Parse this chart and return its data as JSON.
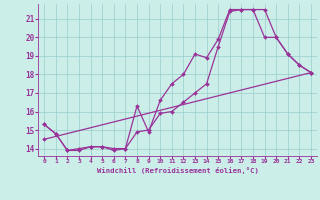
{
  "xlabel": "Windchill (Refroidissement éolien,°C)",
  "bg_color": "#cceee8",
  "grid_color": "#99cccc",
  "line_color": "#993399",
  "xlim": [
    -0.5,
    23.5
  ],
  "ylim": [
    13.6,
    21.8
  ],
  "xticks": [
    0,
    1,
    2,
    3,
    4,
    5,
    6,
    7,
    8,
    9,
    10,
    11,
    12,
    13,
    14,
    15,
    16,
    17,
    18,
    19,
    20,
    21,
    22,
    23
  ],
  "yticks": [
    14,
    15,
    16,
    17,
    18,
    19,
    20,
    21
  ],
  "line1_x": [
    0,
    1,
    2,
    3,
    4,
    5,
    6,
    7,
    8,
    9,
    10,
    11,
    12,
    13,
    14,
    15,
    16,
    17,
    18,
    19,
    20,
    21,
    22,
    23
  ],
  "line1_y": [
    15.3,
    14.8,
    13.9,
    13.9,
    14.1,
    14.1,
    13.9,
    14.0,
    16.3,
    14.9,
    16.6,
    17.5,
    18.0,
    19.1,
    18.9,
    19.9,
    21.5,
    21.5,
    21.5,
    20.0,
    20.0,
    19.1,
    18.5,
    18.1
  ],
  "line2_x": [
    0,
    1,
    2,
    3,
    4,
    5,
    6,
    7,
    8,
    9,
    10,
    11,
    12,
    13,
    14,
    15,
    16,
    17,
    18,
    19,
    20,
    21,
    22,
    23
  ],
  "line2_y": [
    15.3,
    14.8,
    13.9,
    14.0,
    14.1,
    14.1,
    14.0,
    14.0,
    14.9,
    15.0,
    15.9,
    16.0,
    16.5,
    17.0,
    17.5,
    19.5,
    21.4,
    21.5,
    21.5,
    21.5,
    20.0,
    19.1,
    18.5,
    18.1
  ],
  "line3_x": [
    0,
    23
  ],
  "line3_y": [
    14.5,
    18.1
  ]
}
